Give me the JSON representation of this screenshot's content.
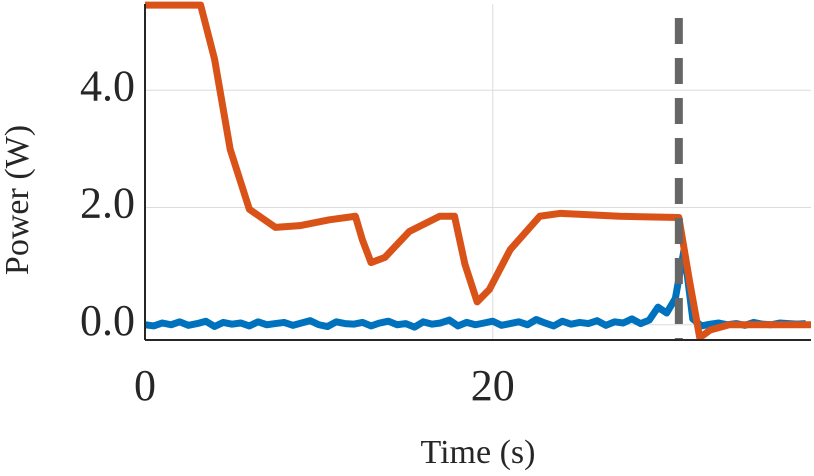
{
  "chart_data": {
    "type": "line",
    "x_label": "Time (s)",
    "y_label": "Power (W)",
    "xlim": [
      0,
      38.3
    ],
    "xticks": [
      0,
      20
    ],
    "ylim": [
      -0.26,
      5.47
    ],
    "yticks": [
      {
        "value": 0,
        "label": "0.0"
      },
      {
        "value": 2,
        "label": "2.0"
      },
      {
        "value": 4,
        "label": "4.0"
      }
    ],
    "grid": true,
    "vline": 30.7,
    "vline_color": "#666666",
    "series": [
      {
        "color": "#0072bd",
        "x": [
          0,
          0.5,
          1,
          1.5,
          2,
          2.5,
          3,
          3.5,
          4,
          4.5,
          5,
          5.5,
          6,
          6.5,
          7,
          7.5,
          8,
          8.5,
          9,
          9.5,
          10,
          10.5,
          11,
          11.5,
          12,
          12.5,
          13,
          13.5,
          14,
          14.5,
          15,
          15.5,
          16,
          16.5,
          17,
          17.5,
          18,
          18.5,
          19,
          19.5,
          20,
          20.5,
          21,
          21.5,
          22,
          22.5,
          23,
          23.5,
          24,
          24.5,
          25,
          25.5,
          26,
          26.5,
          27,
          27.5,
          28,
          28.5,
          29,
          29.5,
          30,
          30.5,
          31,
          31.5,
          32,
          32.5,
          33,
          33.5,
          34,
          34.5,
          35,
          35.5,
          36,
          36.5,
          37,
          37.5,
          38
        ],
        "values": [
          0.0,
          -0.02,
          0.03,
          0.0,
          0.05,
          -0.01,
          0.02,
          0.06,
          -0.03,
          0.04,
          0.01,
          0.03,
          -0.02,
          0.05,
          0.0,
          0.02,
          0.04,
          -0.01,
          0.03,
          0.07,
          0.0,
          -0.03,
          0.05,
          0.02,
          0.01,
          0.04,
          -0.02,
          0.03,
          0.06,
          0.0,
          0.02,
          -0.04,
          0.05,
          0.01,
          0.03,
          0.08,
          -0.02,
          0.04,
          0.0,
          0.03,
          0.06,
          -0.01,
          0.02,
          0.05,
          0.0,
          0.09,
          0.03,
          -0.02,
          0.06,
          0.01,
          0.04,
          0.02,
          0.07,
          -0.01,
          0.05,
          0.03,
          0.1,
          0.02,
          0.08,
          0.3,
          0.2,
          0.45,
          1.28,
          0.1,
          -0.02,
          0.01,
          0.03,
          0.0,
          0.02,
          -0.01,
          0.04,
          0.01,
          0.0,
          0.03,
          0.02,
          0.01,
          0.02
        ]
      },
      {
        "color": "#d95319",
        "x": [
          0,
          3.2,
          4.0,
          4.9,
          6.0,
          7.5,
          8.9,
          10.6,
          12.1,
          12.5,
          13.0,
          13.8,
          15.2,
          16.95,
          17.8,
          18.4,
          19.1,
          19.8,
          21.0,
          22.7,
          23.9,
          27.3,
          30.7,
          31.3,
          31.9,
          32.5,
          33.6,
          38.3
        ],
        "values": [
          5.45,
          5.45,
          4.53,
          2.99,
          1.97,
          1.66,
          1.69,
          1.79,
          1.85,
          1.45,
          1.06,
          1.15,
          1.59,
          1.85,
          1.85,
          1.03,
          0.39,
          0.6,
          1.28,
          1.85,
          1.9,
          1.85,
          1.83,
          0.77,
          -0.22,
          -0.09,
          0.0,
          0.0
        ]
      }
    ]
  }
}
